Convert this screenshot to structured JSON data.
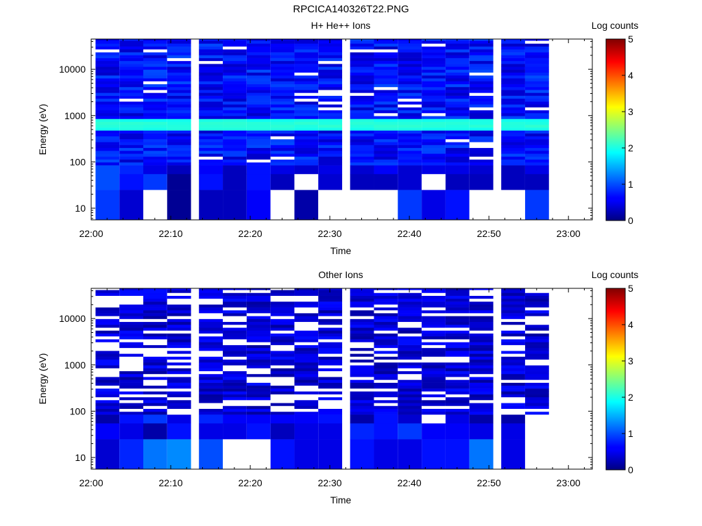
{
  "figure": {
    "title": "RPCICA140326T22.PNG"
  },
  "chart_data": [
    {
      "type": "heatmap",
      "title": "H+ He++ Ions",
      "xlabel": "Time",
      "ylabel": "Energy (eV)",
      "y_scale": "log",
      "xlim": [
        "22:00",
        "23:03"
      ],
      "ylim": [
        5.6,
        45000
      ],
      "x_tick_labels": [
        "22:00",
        "22:10",
        "22:20",
        "22:30",
        "22:40",
        "22:50",
        "23:00"
      ],
      "y_tick_labels": [
        "10",
        "100",
        "1000",
        "10000"
      ],
      "colorbar": {
        "label": "Log counts",
        "range": [
          0,
          5
        ],
        "tick_labels": [
          "0",
          "1",
          "2",
          "3",
          "4",
          "5"
        ]
      },
      "time_columns": [
        "22:02",
        "22:05",
        "22:08",
        "22:11",
        "22:15",
        "22:18",
        "22:21",
        "22:24",
        "22:27",
        "22:30",
        "22:34",
        "22:37",
        "22:40",
        "22:43",
        "22:46",
        "22:49",
        "22:53",
        "22:56"
      ],
      "peak_band": {
        "energy_eV": [
          480,
          900
        ],
        "log_counts": 2.1
      },
      "low_energy_values": [
        {
          "energy_eV": 10,
          "values": [
            0.9,
            0.4,
            null,
            0.1,
            0.3,
            0.3,
            0.6,
            null,
            0.2,
            null,
            null,
            null,
            0.9,
            0.5,
            0.7,
            null,
            null,
            0.9
          ]
        },
        {
          "energy_eV": 40,
          "values": [
            1.0,
            0.7,
            0.9,
            0.1,
            0.7,
            0.3,
            0.7,
            0.3,
            null,
            0.4,
            0.3,
            0.3,
            0.4,
            null,
            0.3,
            0.3,
            0.3,
            0.3
          ]
        },
        {
          "energy_eV": 70,
          "values": [
            1.0,
            0.8,
            0.5,
            0.3,
            0.6,
            0.3,
            0.7,
            0.5,
            0.4,
            0.5,
            0.4,
            0.6,
            0.4,
            0.5,
            0.5,
            0.4,
            0.3,
            0.5
          ]
        }
      ]
    },
    {
      "type": "heatmap",
      "title": "Other Ions",
      "xlabel": "Time",
      "ylabel": "Energy (eV)",
      "y_scale": "log",
      "xlim": [
        "22:00",
        "23:03"
      ],
      "ylim": [
        5.6,
        45000
      ],
      "x_tick_labels": [
        "22:00",
        "22:10",
        "22:20",
        "22:30",
        "22:40",
        "22:50",
        "23:00"
      ],
      "y_tick_labels": [
        "10",
        "100",
        "1000",
        "10000"
      ],
      "colorbar": {
        "label": "Log counts",
        "range": [
          0,
          5
        ],
        "tick_labels": [
          "0",
          "1",
          "2",
          "3",
          "4",
          "5"
        ]
      },
      "time_columns": [
        "22:02",
        "22:05",
        "22:08",
        "22:11",
        "22:15",
        "22:18",
        "22:21",
        "22:24",
        "22:27",
        "22:30",
        "22:34",
        "22:37",
        "22:40",
        "22:43",
        "22:46",
        "22:49",
        "22:53",
        "22:56"
      ],
      "low_energy_values": [
        {
          "energy_eV": 10,
          "values": [
            0.4,
            0.8,
            1.2,
            1.3,
            1.0,
            null,
            null,
            0.7,
            0.5,
            0.5,
            0.7,
            0.5,
            0.5,
            0.7,
            0.7,
            1.2,
            0.5,
            null
          ]
        },
        {
          "energy_eV": 40,
          "values": [
            0.6,
            0.5,
            0.2,
            0.7,
            0.5,
            0.5,
            0.7,
            0.3,
            0.5,
            0.5,
            0.8,
            0.7,
            0.9,
            0.6,
            0.6,
            0.5,
            0.5,
            null
          ]
        },
        {
          "energy_eV": 70,
          "values": [
            0.2,
            0.7,
            0.9,
            0.5,
            0.8,
            0.6,
            0.6,
            0.6,
            0.6,
            0.7,
            0.2,
            0.7,
            0.4,
            null,
            0.5,
            0.2,
            0.2,
            null
          ]
        }
      ]
    }
  ]
}
